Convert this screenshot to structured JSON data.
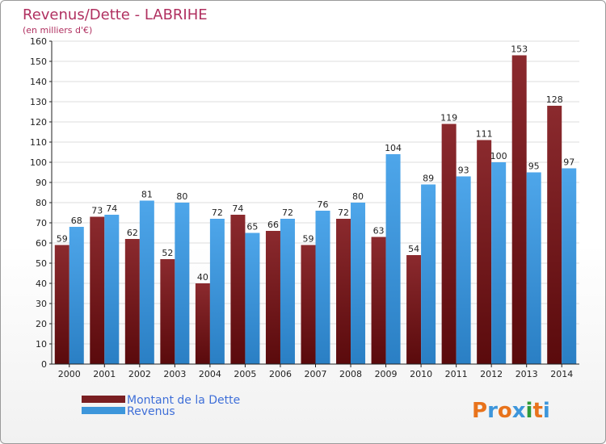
{
  "header": {
    "title": "Revenus/Dette - LABRIHE",
    "subtitle": "(en milliers d'€)"
  },
  "colors": {
    "title": "#b03060",
    "debt": "#7a1f22",
    "revenue": "#3d96db",
    "legend_text": "#3f6fd8",
    "grid": "#dcdcdc",
    "axis": "#222222"
  },
  "chart_data": {
    "type": "bar",
    "title": "Revenus/Dette - LABRIHE",
    "subtitle": "(en milliers d'€)",
    "categories": [
      "2000",
      "2001",
      "2002",
      "2003",
      "2004",
      "2005",
      "2006",
      "2007",
      "2008",
      "2009",
      "2010",
      "2011",
      "2012",
      "2013",
      "2014"
    ],
    "series": [
      {
        "name": "Montant de la Dette",
        "values": [
          59,
          73,
          62,
          52,
          40,
          74,
          66,
          59,
          72,
          63,
          54,
          119,
          111,
          153,
          128
        ]
      },
      {
        "name": "Revenus",
        "values": [
          68,
          74,
          81,
          80,
          72,
          65,
          72,
          76,
          80,
          104,
          89,
          93,
          100,
          95,
          97
        ]
      }
    ],
    "ylim": [
      0,
      160
    ],
    "yticks": [
      0,
      10,
      20,
      30,
      40,
      50,
      60,
      70,
      80,
      90,
      100,
      110,
      120,
      130,
      140,
      150,
      160
    ],
    "grid": true,
    "legend_position": "bottom-left"
  },
  "legend": {
    "items": [
      {
        "label": "Montant de la Dette",
        "icon": "dark-red-bar-swatch"
      },
      {
        "label": "Revenus",
        "icon": "blue-bar-swatch"
      }
    ]
  },
  "branding": {
    "logo_letters": [
      "P",
      "r",
      "o",
      "x",
      "i",
      "t",
      "i"
    ],
    "logo_colors": [
      "#e8731c",
      "#3d96db",
      "#e8731c",
      "#3d96db",
      "#2f9a3a",
      "#e8731c",
      "#3d96db"
    ]
  }
}
